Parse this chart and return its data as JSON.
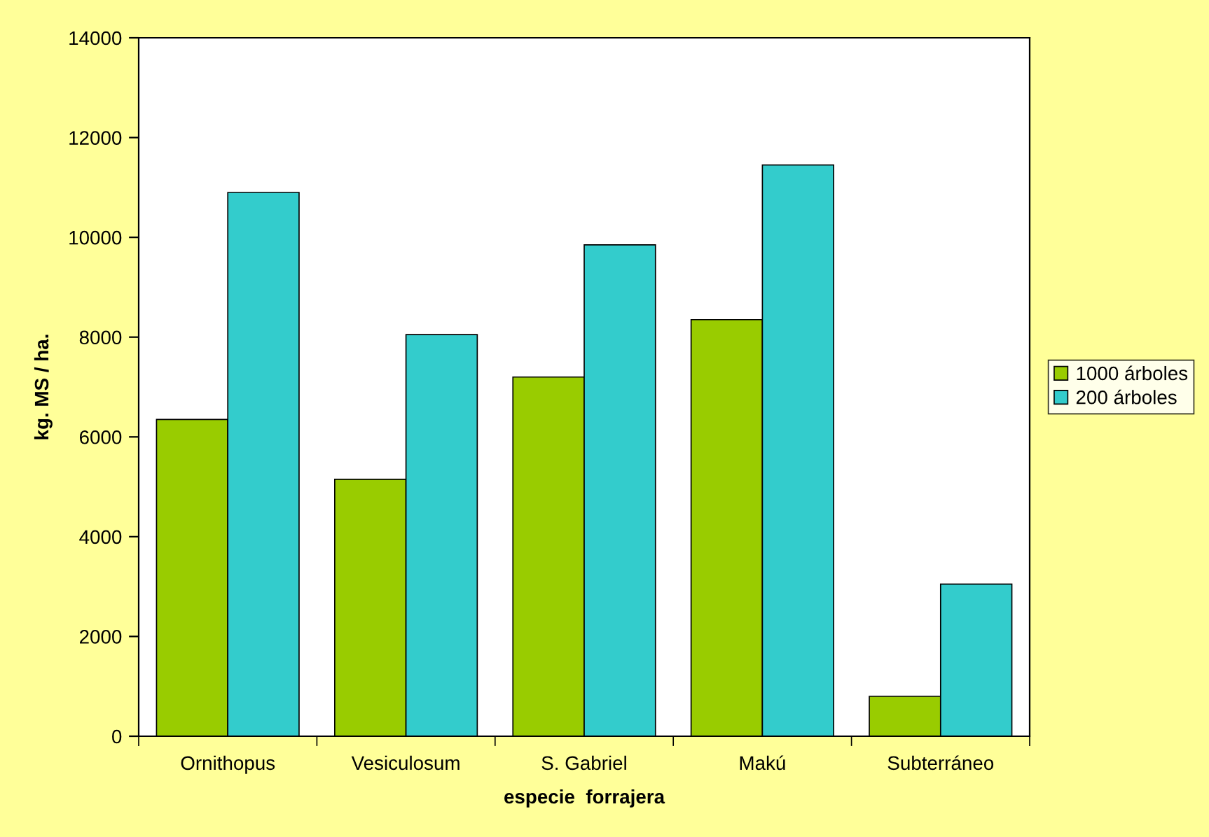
{
  "chart_data": {
    "type": "bar",
    "xlabel": "especie  forrajera",
    "ylabel": "kg. MS / ha.",
    "categories": [
      "Ornithopus",
      "Vesiculosum",
      "S. Gabriel",
      "Makú",
      "Subterráneo"
    ],
    "series": [
      {
        "name": "1000 árboles",
        "color": "#99cc00",
        "values": [
          6350,
          5150,
          7200,
          8350,
          800
        ]
      },
      {
        "name": "200 árboles",
        "color": "#33cccc",
        "values": [
          10900,
          8050,
          9850,
          11450,
          3050
        ]
      }
    ],
    "ylim": [
      0,
      14000
    ],
    "yticks": [
      0,
      2000,
      4000,
      6000,
      8000,
      10000,
      12000,
      14000
    ],
    "grid": false,
    "legend": "right"
  }
}
